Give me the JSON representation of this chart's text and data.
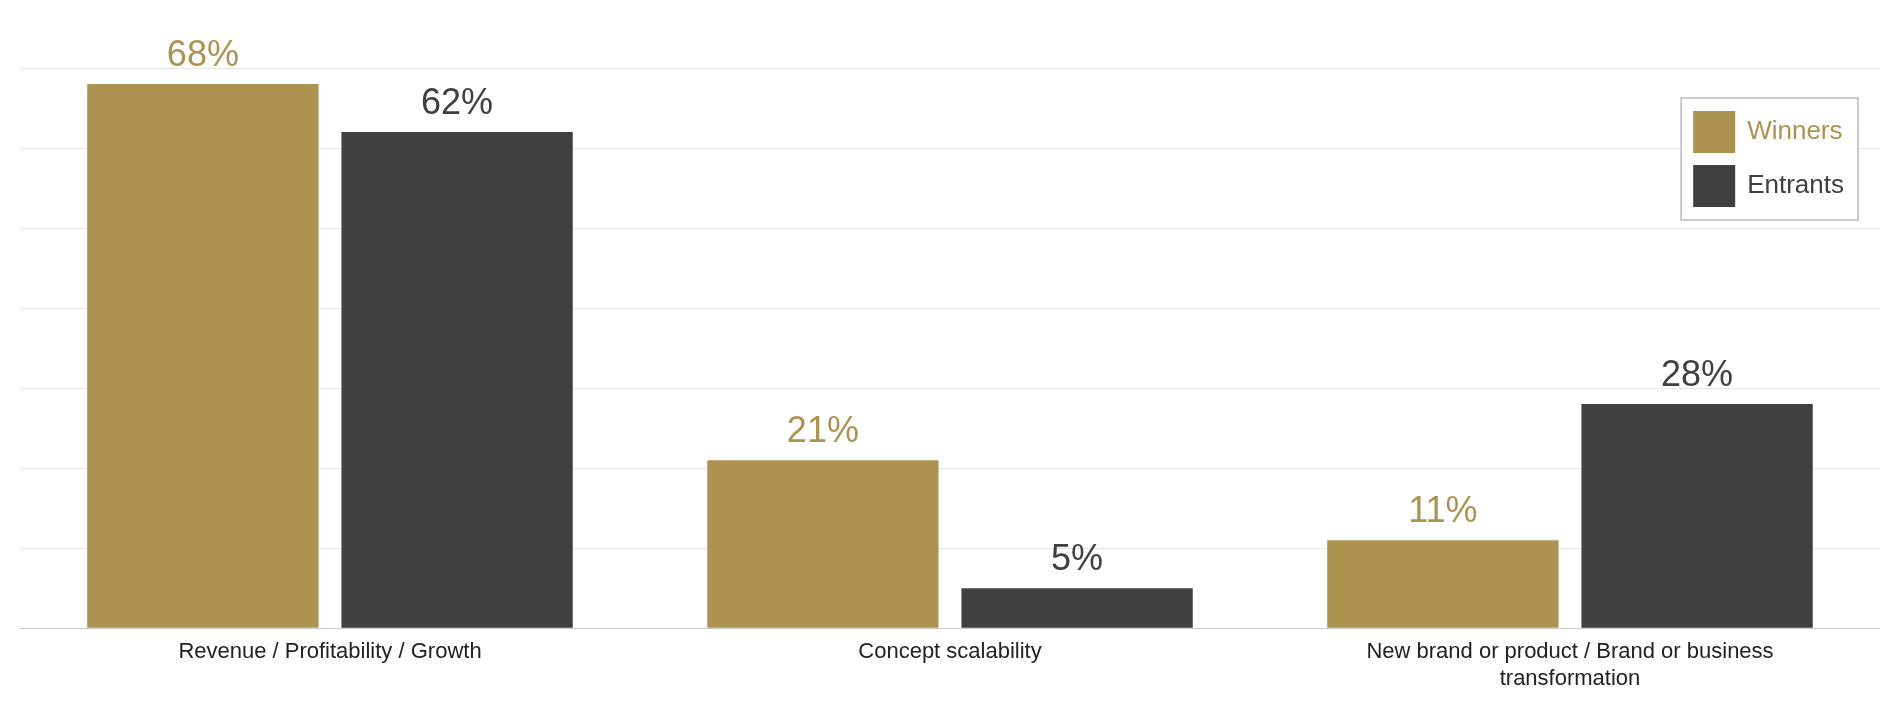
{
  "chart_data": {
    "type": "bar",
    "categories": [
      "Revenue / Profitability / Growth",
      "Concept scalability",
      "New brand or product / Brand or business transformation"
    ],
    "series": [
      {
        "name": "Winners",
        "color": "#ad9350",
        "values": [
          68,
          21,
          11
        ],
        "value_labels": [
          "68%",
          "21%",
          "11%"
        ]
      },
      {
        "name": "Entrants",
        "color": "#404040",
        "values": [
          62,
          5,
          28
        ],
        "value_labels": [
          "62%",
          "5%",
          "28%"
        ]
      }
    ],
    "tick_labels": "x",
    "grid": "y",
    "legend": "top right"
  }
}
